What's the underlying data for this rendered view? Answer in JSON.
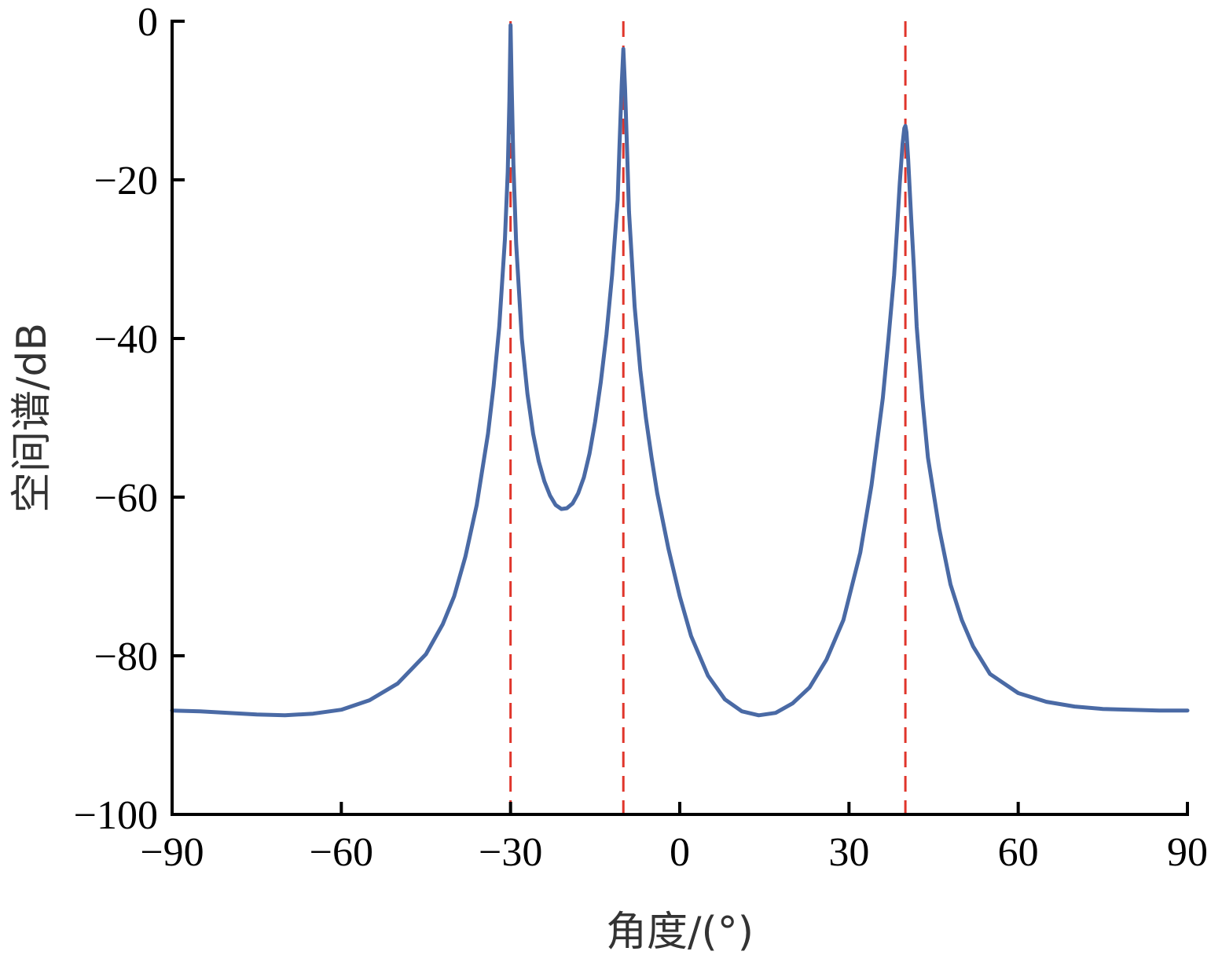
{
  "chart_data": {
    "type": "line",
    "title": "",
    "xlabel": "角度/(°)",
    "ylabel": "空间谱/dB",
    "xlim": [
      -90,
      90
    ],
    "ylim": [
      -100,
      0
    ],
    "xticks": [
      -90,
      -60,
      -30,
      0,
      30,
      60,
      90
    ],
    "xtick_labels": [
      "−90",
      "−60",
      "−30",
      "0",
      "30",
      "60",
      "90"
    ],
    "yticks": [
      0,
      -20,
      -40,
      -60,
      -80,
      -100
    ],
    "ytick_labels": [
      "0",
      "−20",
      "−40",
      "−60",
      "−80",
      "−100"
    ],
    "grid": false,
    "legend": "none",
    "colors": {
      "spectrum": "#4a6aa5",
      "reference": "#e0352b",
      "axis": "#000000"
    },
    "series": [
      {
        "x": [
          -90,
          -85,
          -80,
          -75,
          -70,
          -65,
          -60,
          -55,
          -50,
          -45,
          -42,
          -40,
          -38,
          -36,
          -34,
          -33,
          -32,
          -31,
          -30.5,
          -30.2,
          -30,
          -29.8,
          -29.5,
          -29,
          -28,
          -27,
          -26,
          -25,
          -24,
          -23,
          -22,
          -21,
          -20,
          -19,
          -18,
          -17,
          -16,
          -15,
          -14,
          -13,
          -12,
          -11,
          -10.7,
          -10.3,
          -10,
          -9.7,
          -9.3,
          -9,
          -8,
          -7,
          -6,
          -5,
          -4,
          -2,
          0,
          2,
          5,
          8,
          11,
          14,
          17,
          20,
          23,
          26,
          29,
          32,
          34,
          36,
          37,
          38,
          38.5,
          39,
          39.5,
          39.8,
          40,
          40.2,
          40.5,
          41,
          41.5,
          42,
          43,
          44,
          46,
          48,
          50,
          52,
          55,
          60,
          65,
          70,
          75,
          80,
          85,
          90
        ],
        "y": [
          -86.9,
          -87.0,
          -87.2,
          -87.4,
          -87.5,
          -87.3,
          -86.8,
          -85.6,
          -83.5,
          -79.8,
          -76.0,
          -72.5,
          -67.5,
          -61.0,
          -52.0,
          -46.0,
          -38.5,
          -27.5,
          -19.0,
          -10.0,
          -0.5,
          -8.0,
          -18.0,
          -28.0,
          -40.0,
          -47.0,
          -52.0,
          -55.5,
          -58.0,
          -59.8,
          -61.0,
          -61.5,
          -61.4,
          -60.8,
          -59.5,
          -57.5,
          -54.5,
          -50.5,
          -45.5,
          -39.5,
          -32.0,
          -22.5,
          -16.0,
          -8.0,
          -3.5,
          -8.5,
          -17.0,
          -24.0,
          -36.0,
          -44.0,
          -50.0,
          -55.0,
          -59.5,
          -66.5,
          -72.5,
          -77.5,
          -82.5,
          -85.5,
          -87.0,
          -87.5,
          -87.2,
          -86.0,
          -84.0,
          -80.5,
          -75.5,
          -67.0,
          -58.5,
          -47.5,
          -40.0,
          -32.0,
          -26.5,
          -20.5,
          -15.5,
          -13.5,
          -13.2,
          -14.0,
          -17.5,
          -24.5,
          -31.0,
          -38.5,
          -47.5,
          -55.0,
          -64.0,
          -71.0,
          -75.5,
          -78.8,
          -82.3,
          -84.7,
          -85.8,
          -86.4,
          -86.7,
          -86.8,
          -86.9,
          -86.9
        ]
      }
    ],
    "reference_lines": [
      {
        "x": -30
      },
      {
        "x": -10
      },
      {
        "x": 40
      }
    ]
  }
}
